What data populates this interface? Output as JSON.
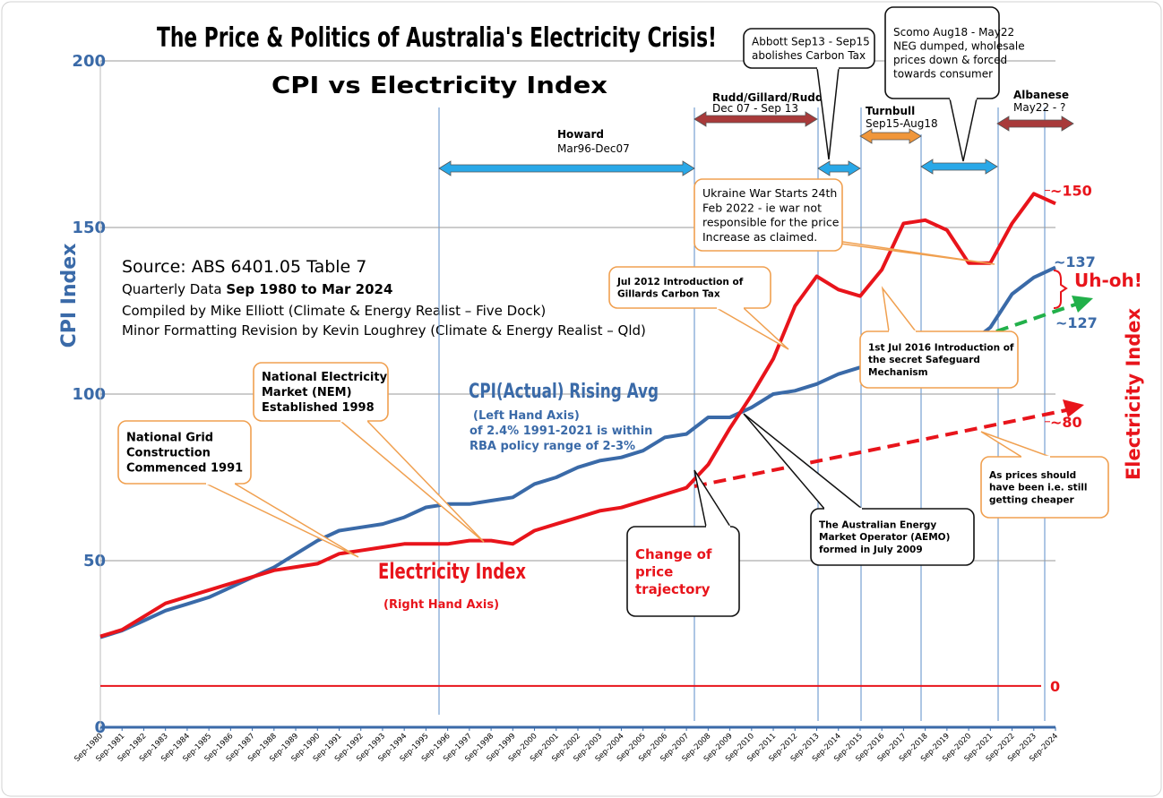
{
  "chart_data": {
    "type": "line",
    "title": "The Price & Politics of Australia's Electricity Crisis!",
    "subtitle": "CPI vs Electricity Index",
    "ylabel": "CPI Index",
    "y2label": "Electricity Index",
    "categories": [
      "Sep-1980",
      "Sep-1981",
      "Sep-1982",
      "Sep-1983",
      "Sep-1984",
      "Sep-1985",
      "Sep-1986",
      "Sep-1987",
      "Sep-1988",
      "Sep-1989",
      "Sep-1990",
      "Sep-1991",
      "Sep-1992",
      "Sep-1993",
      "Sep-1994",
      "Sep-1995",
      "Sep-1996",
      "Sep-1997",
      "Sep-1998",
      "Sep-1999",
      "Sep-2000",
      "Sep-2001",
      "Sep-2002",
      "Sep-2003",
      "Sep-2004",
      "Sep-2005",
      "Sep-2006",
      "Sep-2007",
      "Sep-2008",
      "Sep-2009",
      "Sep-2010",
      "Sep-2011",
      "Sep-2012",
      "Sep-2013",
      "Sep-2014",
      "Sep-2015",
      "Sep-2016",
      "Sep-2017",
      "Sep-2018",
      "Sep-2019",
      "Sep-2020",
      "Sep-2021",
      "Sep-2022",
      "Sep-2023",
      "Sep-2024"
    ],
    "series": [
      {
        "name": "CPI(Actual) Rising Avg",
        "color": "#3a6aa8",
        "axis": "y",
        "values": [
          27,
          29,
          32,
          35,
          37,
          39,
          42,
          45,
          48,
          52,
          56,
          59,
          60,
          61,
          63,
          66,
          67,
          67,
          68,
          69,
          73,
          75,
          78,
          80,
          81,
          83,
          87,
          88,
          93,
          93,
          96,
          100,
          101,
          103,
          106,
          108,
          110,
          111,
          113,
          115,
          115,
          120,
          130,
          135,
          138
        ]
      },
      {
        "name": "Electricity Index",
        "color": "#e8141b",
        "axis": "y2",
        "values": [
          15,
          17,
          21,
          25,
          27,
          29,
          31,
          33,
          35,
          36,
          37,
          40,
          41,
          42,
          43,
          43,
          43,
          44,
          44,
          43,
          47,
          49,
          51,
          53,
          54,
          56,
          58,
          60,
          67,
          78,
          88,
          99,
          115,
          124,
          120,
          118,
          126,
          140,
          141,
          138,
          128,
          128,
          140,
          149,
          146
        ]
      }
    ],
    "ylim": [
      0,
      200
    ],
    "yticks": [
      0,
      50,
      100,
      150,
      200
    ],
    "y2lim": [
      -12.5,
      189.2
    ],
    "y2ticks": [
      0,
      {
        "value": 80,
        "label": "~80"
      },
      {
        "value": 150,
        "label": "~150"
      }
    ],
    "grid": true,
    "legend_texts": {
      "cpi_sub": [
        "(Left Hand Axis)",
        "of 2.4% 1991-2021 is within",
        "RBA policy range of 2-3%"
      ],
      "elec_sub": "(Right Hand Axis)"
    },
    "source": {
      "line1": "Source:   ABS 6401.05 Table 7",
      "line2a": "Quarterly  Data ",
      "line2b": "Sep 1980 to Mar 2024",
      "line3": "Compiled by Mike Elliott (Climate & Energy Realist – Five Dock)",
      "line4": "Minor Formatting Revision by Kevin Loughrey (Climate & Energy Realist – Qld)"
    },
    "end_labels": {
      "cpi_high": "~137",
      "cpi_low": "~127",
      "warning": "Uh-oh!"
    },
    "periods": [
      {
        "name": "Howard",
        "dates": "Mar96-Dec07"
      },
      {
        "name": "Rudd/Gillard/Rudd",
        "dates": "Dec 07 -  Sep 13"
      },
      {
        "name": "Turnbull",
        "dates": "Sep15-Aug18"
      },
      {
        "name": "Albanese",
        "dates": "May22 - ?"
      }
    ],
    "callouts": [
      {
        "lines": [
          "National Grid",
          "Construction",
          "Commenced 1991"
        ]
      },
      {
        "lines": [
          "National Electricity",
          "Market (NEM)",
          "Established 1998"
        ]
      },
      {
        "lines": [
          "Jul 2012 Introduction of",
          "Gillards  Carbon Tax"
        ]
      },
      {
        "lines": [
          "Ukraine War Starts 24th",
          "Feb 2022 - ie war not",
          "responsible for the price",
          "Increase as claimed."
        ]
      },
      {
        "lines": [
          "1st Jul 2016 Introduction of",
          "the secret Safeguard",
          "Mechanism"
        ]
      },
      {
        "lines": [
          "The Australian Energy",
          "Market Operator (AEMO)",
          "formed in July 2009"
        ]
      },
      {
        "lines": [
          "Change of",
          "price",
          "trajectory"
        ]
      },
      {
        "lines": [
          "As prices should",
          "have been i.e. still",
          "getting cheaper"
        ]
      },
      {
        "lines": [
          "Abbott  Sep13 - Sep15",
          "abolishes Carbon Tax"
        ]
      },
      {
        "lines": [
          "Scomo  Aug18 - May22",
          "NEG dumped, wholesale",
          "prices down & forced",
          "towards consumer"
        ]
      }
    ]
  }
}
